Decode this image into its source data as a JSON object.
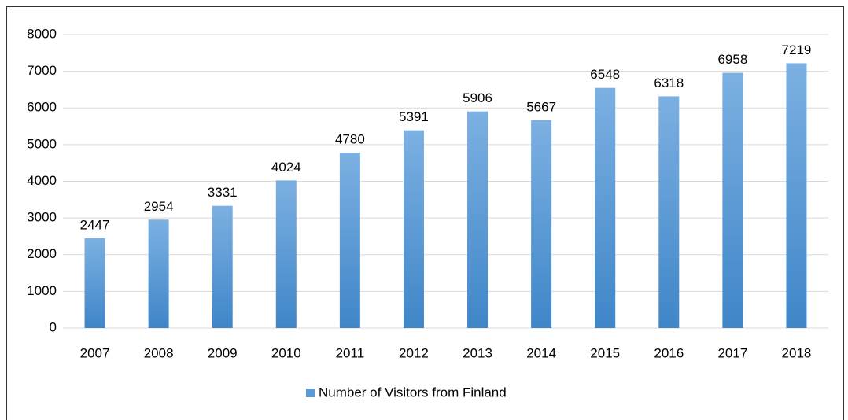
{
  "chart_data": {
    "type": "bar",
    "categories": [
      "2007",
      "2008",
      "2009",
      "2010",
      "2011",
      "2012",
      "2013",
      "2014",
      "2015",
      "2016",
      "2017",
      "2018"
    ],
    "series": [
      {
        "name": "Number of Visitors from Finland",
        "color": "#5b9bd5",
        "values": [
          2447,
          2954,
          3331,
          4024,
          4780,
          5391,
          5906,
          5667,
          6548,
          6318,
          6958,
          7219
        ]
      }
    ],
    "ylim": [
      0,
      8000
    ],
    "yticks": [
      0,
      1000,
      2000,
      3000,
      4000,
      5000,
      6000,
      7000,
      8000
    ],
    "grid": true,
    "legend": "bottom",
    "data_labels": true
  }
}
